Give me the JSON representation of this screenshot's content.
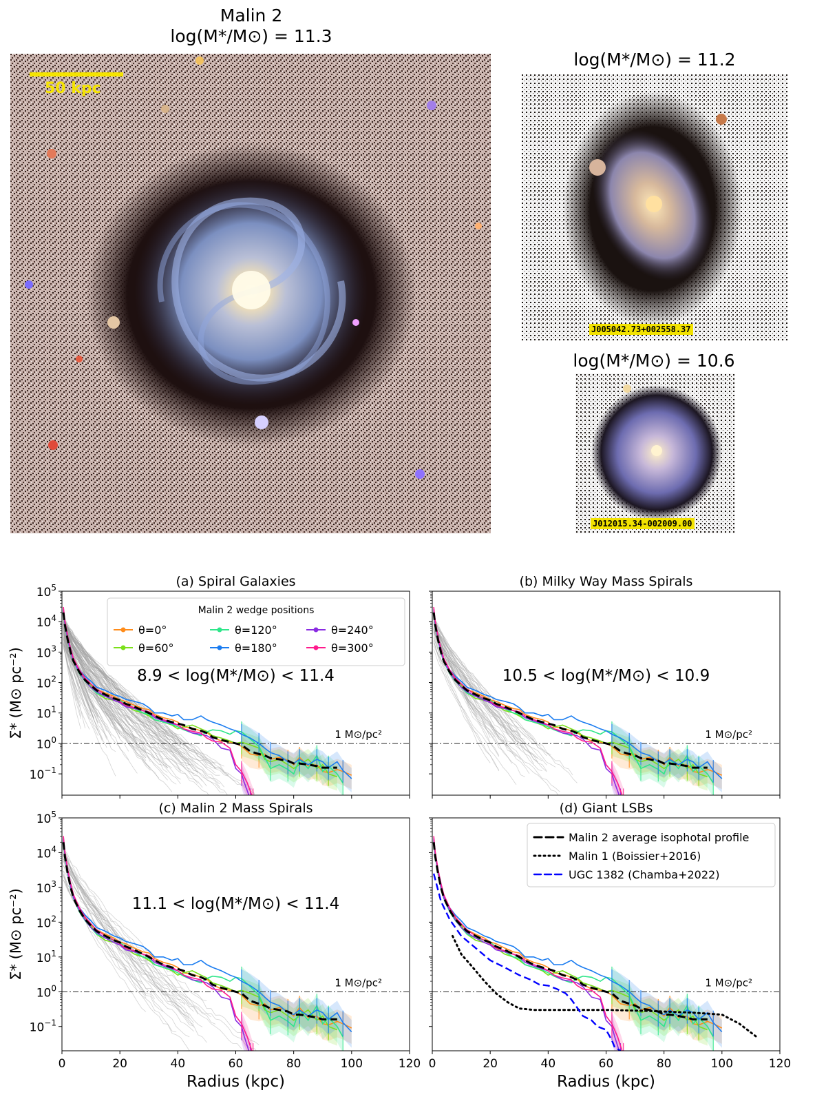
{
  "images": {
    "main": {
      "title": "Malin 2",
      "mass_label": "log(M*/M⊙) = 11.3",
      "scale_bar": "50 kpc"
    },
    "top_right": {
      "mass_label": "log(M*/M⊙) = 11.2",
      "id": "J005042.73+002558.37"
    },
    "bottom_right": {
      "mass_label": "log(M*/M⊙) = 10.6",
      "id": "J012015.34-002009.00"
    }
  },
  "colors": {
    "theta0": "#ff8c1a",
    "theta60": "#7be01a",
    "theta120": "#2ee68a",
    "theta180": "#1a7cf0",
    "theta240": "#8a2be2",
    "theta300": "#ff1a8c",
    "average": "#000000",
    "malin1": "#000000",
    "ugc1382": "#0000ff",
    "sample": "#9e9e9e"
  },
  "legend": {
    "title": "Malin 2 wedge positions",
    "wedges": [
      "θ=0°",
      "θ=60°",
      "θ=120°",
      "θ=180°",
      "θ=240°",
      "θ=300°"
    ],
    "lsb": [
      "Malin 2 average isophotal profile",
      "Malin 1 (Boissier+2016)",
      "UGC 1382 (Chamba+2022)"
    ]
  },
  "reference_line_label": "1 M⊙/pc²",
  "chart_data": [
    {
      "panel": "a",
      "type": "line",
      "title": "(a) Spiral Galaxies",
      "mass_range": "8.9 < log(M*/M⊙) < 11.4",
      "xlabel": "Radius (kpc)",
      "ylabel": "Σ* (M⊙ pc⁻²)",
      "xlim": [
        0,
        120
      ],
      "ylim": [
        0.02,
        100000
      ],
      "yscale": "log",
      "xticks": [
        0,
        20,
        40,
        60,
        80,
        100,
        120
      ],
      "yticks": [
        "10^-1",
        "10^0",
        "10^1",
        "10^2",
        "10^3",
        "10^4",
        "10^5"
      ],
      "reference_line": 1,
      "sample_curves": 110,
      "sample_min_scale": 1.2,
      "sample_max_scale": 11
    },
    {
      "panel": "b",
      "type": "line",
      "title": "(b) Milky Way Mass Spirals",
      "mass_range": "10.5 < log(M*/M⊙) < 10.9",
      "xlabel": "Radius (kpc)",
      "ylabel": "Σ* (M⊙ pc⁻²)",
      "xlim": [
        0,
        120
      ],
      "ylim": [
        0.02,
        100000
      ],
      "yscale": "log",
      "reference_line": 1,
      "sample_curves": 45,
      "sample_min_scale": 3.5,
      "sample_max_scale": 8.5
    },
    {
      "panel": "c",
      "type": "line",
      "title": "(c) Malin 2 Mass Spirals",
      "mass_range": "11.1 < log(M*/M⊙) < 11.4",
      "xlabel": "Radius (kpc)",
      "ylabel": "Σ* (M⊙ pc⁻²)",
      "xlim": [
        0,
        120
      ],
      "ylim": [
        0.02,
        100000
      ],
      "yscale": "log",
      "reference_line": 1,
      "sample_curves": 30,
      "sample_min_scale": 6,
      "sample_max_scale": 12
    },
    {
      "panel": "d",
      "type": "line",
      "title": "(d) Giant LSBs",
      "mass_range": "",
      "xlabel": "Radius (kpc)",
      "ylabel": "Σ* (M⊙ pc⁻²)",
      "xlim": [
        0,
        120
      ],
      "ylim": [
        0.02,
        100000
      ],
      "yscale": "log",
      "reference_line": 1,
      "sample_curves": 0,
      "comparison": {
        "malin1": {
          "x": [
            7,
            10,
            14,
            18,
            22,
            26,
            30,
            35,
            45,
            60,
            75,
            90,
            100,
            106,
            112
          ],
          "y": [
            40,
            12,
            5,
            2,
            0.9,
            0.5,
            0.33,
            0.3,
            0.3,
            0.3,
            0.28,
            0.25,
            0.22,
            0.12,
            0.05
          ]
        },
        "ugc1382": {
          "x": [
            0.5,
            3,
            6,
            10,
            15,
            20,
            25,
            30,
            34,
            37,
            40,
            43,
            46,
            48,
            50,
            52,
            55,
            57,
            60,
            62,
            63,
            65
          ],
          "y": [
            2500,
            400,
            120,
            40,
            18,
            8,
            5,
            3,
            2.2,
            1.6,
            1.5,
            1.2,
            0.9,
            0.6,
            0.35,
            0.2,
            0.15,
            0.1,
            0.08,
            0.04,
            0.025,
            0.02
          ]
        }
      }
    }
  ],
  "profiles": {
    "average": {
      "x": [
        0.5,
        1,
        2,
        3,
        4,
        6,
        8,
        10,
        12,
        15,
        18,
        20,
        22,
        25,
        28,
        30,
        32,
        35,
        38,
        40,
        42,
        45,
        48,
        50,
        52,
        55,
        58,
        60,
        62,
        65,
        68,
        70,
        72,
        75,
        78,
        80,
        82,
        85,
        88,
        90,
        92,
        95
      ],
      "y": [
        20000,
        8000,
        2500,
        1000,
        500,
        220,
        120,
        80,
        55,
        40,
        30,
        26,
        20,
        16,
        12,
        10,
        8,
        6,
        5,
        4.5,
        4,
        3,
        2.6,
        2.2,
        1.6,
        1.3,
        1.1,
        1,
        0.9,
        0.55,
        0.45,
        0.4,
        0.33,
        0.3,
        0.27,
        0.22,
        0.22,
        0.2,
        0.18,
        0.16,
        0.16,
        0.16
      ]
    },
    "wedges": [
      {
        "x": [
          0.5,
          1,
          2,
          3,
          4,
          6,
          8,
          10,
          12,
          15,
          18,
          20,
          22,
          25,
          28,
          30,
          32,
          35,
          38,
          40,
          42,
          45,
          48,
          50,
          52,
          55,
          58,
          60,
          62,
          65,
          68,
          70,
          72,
          75,
          78,
          80,
          82,
          85,
          88,
          90,
          92,
          95,
          97,
          100
        ],
        "y": [
          23000,
          9000,
          2800,
          1100,
          520,
          230,
          125,
          85,
          60,
          45,
          35,
          27,
          24,
          18,
          14,
          13,
          9,
          7,
          6,
          5,
          3.5,
          3.2,
          2.6,
          2.3,
          1.6,
          1.2,
          1.1,
          1,
          0.8,
          0.45,
          0.4,
          0.45,
          0.3,
          0.35,
          0.28,
          0.2,
          0.35,
          0.18,
          0.2,
          0.12,
          0.11,
          0.14,
          0.12,
          0.09
        ]
      },
      {
        "x": [
          0.5,
          1,
          2,
          3,
          4,
          6,
          8,
          10,
          12,
          15,
          18,
          20,
          22,
          25,
          28,
          30,
          32,
          35,
          38,
          40,
          42,
          45,
          48,
          50,
          52,
          55,
          58,
          60,
          62,
          65,
          68,
          70,
          72,
          75,
          78,
          80,
          82,
          85,
          88,
          90,
          92,
          95
        ],
        "y": [
          22000,
          8500,
          2600,
          1000,
          500,
          210,
          120,
          80,
          45,
          30,
          26,
          22,
          18,
          12,
          10,
          8,
          6,
          5,
          4,
          3,
          3.5,
          4,
          3,
          2.5,
          1.8,
          1.5,
          1.2,
          1,
          1.1,
          0.9,
          0.7,
          0.3,
          0.25,
          0.3,
          0.2,
          0.15,
          0.2,
          0.3,
          0.15,
          0.2,
          0.1,
          0.08
        ]
      },
      {
        "x": [
          0.5,
          1,
          2,
          3,
          4,
          6,
          8,
          10,
          12,
          15,
          18,
          20,
          22,
          25,
          28,
          30,
          32,
          35,
          38,
          40,
          42,
          45,
          48,
          50,
          52,
          55,
          58,
          60,
          62,
          65,
          68,
          70,
          72,
          75,
          78,
          80,
          82,
          85,
          88,
          90,
          92,
          95,
          97
        ],
        "y": [
          21000,
          8000,
          2400,
          950,
          480,
          200,
          110,
          70,
          45,
          35,
          30,
          26,
          20,
          14,
          10,
          9,
          6,
          5,
          4.2,
          3.5,
          2.8,
          2.2,
          1.8,
          2.4,
          2.8,
          2.6,
          2,
          2.6,
          2.4,
          1.4,
          0.8,
          0.35,
          0.15,
          0.2,
          0.14,
          0.1,
          0.3,
          0.15,
          0.4,
          0.12,
          0.18,
          0.1,
          0.05
        ]
      },
      {
        "x": [
          0.5,
          1,
          2,
          3,
          4,
          6,
          8,
          10,
          12,
          15,
          18,
          20,
          22,
          25,
          28,
          30,
          32,
          35,
          38,
          40,
          42,
          45,
          48,
          50,
          52,
          55,
          58,
          60,
          62,
          65,
          68,
          70,
          72,
          75,
          78,
          80,
          82,
          85,
          88,
          90,
          92,
          95,
          97,
          100
        ],
        "y": [
          26000,
          10000,
          3200,
          1300,
          600,
          260,
          160,
          110,
          70,
          55,
          40,
          35,
          28,
          24,
          20,
          15,
          10,
          10,
          8,
          9,
          6,
          6,
          8,
          6,
          5,
          4,
          3,
          2.6,
          2,
          1.5,
          1,
          0.7,
          0.5,
          0.4,
          0.25,
          0.22,
          0.3,
          0.2,
          0.3,
          0.25,
          0.16,
          0.25,
          0.13,
          0.07
        ]
      },
      {
        "x": [
          0.5,
          1,
          2,
          3,
          4,
          6,
          8,
          10,
          12,
          15,
          18,
          20,
          22,
          25,
          28,
          30,
          32,
          35,
          38,
          40,
          42,
          45,
          48,
          50,
          52,
          55,
          58,
          60,
          62,
          63,
          65
        ],
        "y": [
          24000,
          9000,
          2700,
          1050,
          500,
          220,
          115,
          70,
          50,
          35,
          26,
          22,
          16,
          14,
          12,
          10,
          7,
          5.5,
          4.5,
          4,
          3,
          2.2,
          2,
          1.8,
          1.4,
          0.7,
          0.6,
          0.15,
          0.1,
          0.05,
          0.015
        ]
      },
      {
        "x": [
          0.5,
          1,
          2,
          3,
          4,
          6,
          8,
          10,
          12,
          15,
          18,
          20,
          22,
          25,
          28,
          30,
          32,
          35,
          38,
          40,
          42,
          45,
          48,
          50,
          52,
          55,
          58,
          60,
          62,
          64,
          66
        ],
        "y": [
          30000,
          11000,
          3300,
          1300,
          620,
          260,
          140,
          90,
          60,
          40,
          30,
          24,
          18,
          15,
          12,
          11,
          8,
          6,
          5,
          4,
          3,
          2.5,
          2.2,
          1.5,
          1.2,
          1.1,
          0.7,
          0.2,
          0.12,
          0.05,
          0.015
        ]
      }
    ]
  }
}
